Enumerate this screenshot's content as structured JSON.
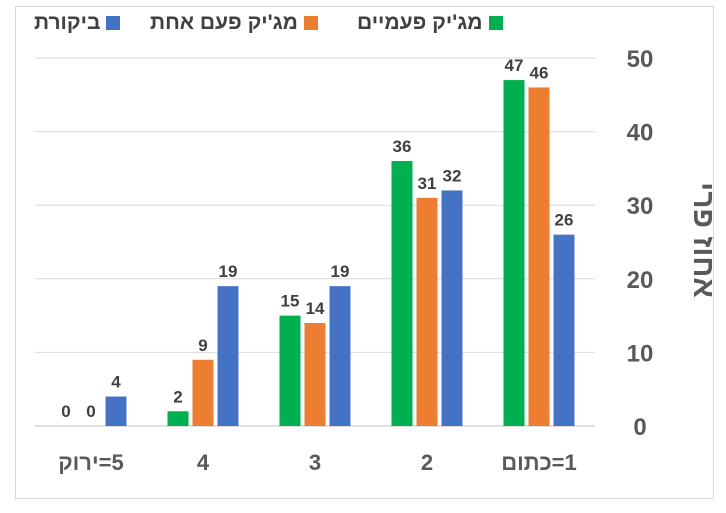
{
  "legend": {
    "items": [
      {
        "label": "ביקורת",
        "color": "#4472C4"
      },
      {
        "label": "מג'יק פעם אחת",
        "color": "#ED7D31"
      },
      {
        "label": "מג'יק פעמיים",
        "color": "#00B050"
      }
    ]
  },
  "chart_data": {
    "type": "bar",
    "ylabel": "אחוז פרי",
    "xlabel": "",
    "ylim": [
      0,
      50
    ],
    "yticks": [
      0,
      10,
      20,
      30,
      40,
      50
    ],
    "y_axis_side": "right",
    "x_direction": "right-to-left",
    "grid": true,
    "legend_position": "top",
    "categories": [
      "1=כתום",
      "2",
      "3",
      "4",
      "5=ירוק"
    ],
    "series": [
      {
        "name": "מג'יק פעמיים",
        "color": "#00B050",
        "values": [
          47,
          36,
          15,
          2,
          0
        ]
      },
      {
        "name": "מג'יק פעם אחת",
        "color": "#ED7D31",
        "values": [
          46,
          31,
          14,
          9,
          0
        ]
      },
      {
        "name": "ביקורת",
        "color": "#4472C4",
        "values": [
          26,
          32,
          19,
          19,
          4
        ]
      }
    ]
  }
}
